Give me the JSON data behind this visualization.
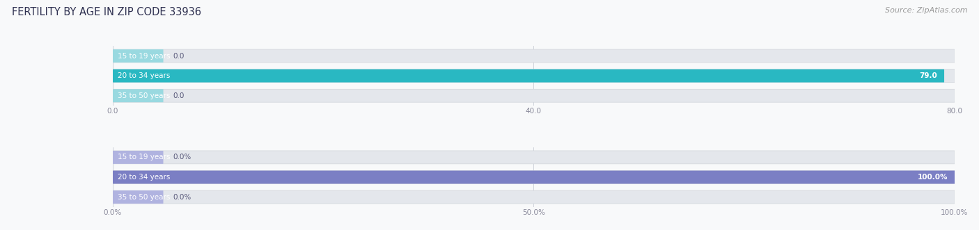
{
  "title": "FERTILITY BY AGE IN ZIP CODE 33936",
  "source": "Source: ZipAtlas.com",
  "top_chart": {
    "categories": [
      "15 to 19 years",
      "20 to 34 years",
      "35 to 50 years"
    ],
    "values": [
      0.0,
      79.0,
      0.0
    ],
    "xlim": [
      0,
      80.0
    ],
    "xticks": [
      0.0,
      40.0,
      80.0
    ],
    "xtick_labels": [
      "0.0",
      "40.0",
      "80.0"
    ],
    "bar_color_main": "#29b8c2",
    "bar_color_light": "#99d9e0",
    "value_labels": [
      "0.0",
      "79.0",
      "0.0"
    ]
  },
  "bottom_chart": {
    "categories": [
      "15 to 19 years",
      "20 to 34 years",
      "35 to 50 years"
    ],
    "values": [
      0.0,
      100.0,
      0.0
    ],
    "xlim": [
      0,
      100.0
    ],
    "xticks": [
      0.0,
      50.0,
      100.0
    ],
    "xtick_labels": [
      "0.0%",
      "50.0%",
      "100.0%"
    ],
    "bar_color_main": "#7b7fc4",
    "bar_color_light": "#b0b3e0",
    "value_labels": [
      "0.0%",
      "100.0%",
      "0.0%"
    ]
  },
  "bg_color": "#f8f9fa",
  "bar_bg_color": "#e4e7ec",
  "title_color": "#2e3050",
  "source_color": "#999999",
  "tick_color": "#888899",
  "title_fontsize": 10.5,
  "label_fontsize": 7.5,
  "tick_fontsize": 7.5,
  "source_fontsize": 8,
  "value_fontsize": 7.5
}
